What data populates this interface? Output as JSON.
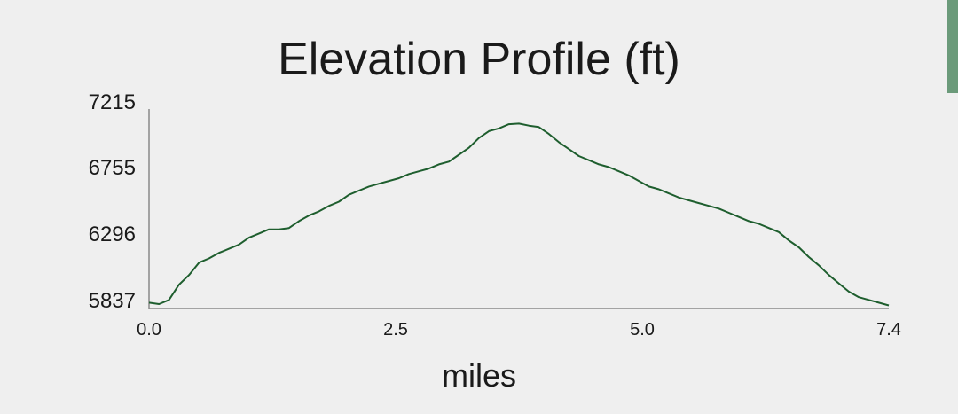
{
  "chart_data": {
    "type": "line",
    "title": "Elevation Profile (ft)",
    "xlabel": "miles",
    "ylabel": "",
    "xlim": [
      0.0,
      7.4
    ],
    "ylim": [
      5837,
      7215
    ],
    "x_ticks": [
      "0.0",
      "2.5",
      "5.0",
      "7.4"
    ],
    "y_ticks": [
      "7215",
      "6755",
      "6296",
      "5837"
    ],
    "grid": false,
    "series": [
      {
        "line_color": "#1e5e2e",
        "x": [
          0.0,
          0.1,
          0.2,
          0.3,
          0.4,
          0.5,
          0.6,
          0.7,
          0.8,
          0.9,
          1.0,
          1.1,
          1.2,
          1.3,
          1.4,
          1.5,
          1.6,
          1.7,
          1.8,
          1.9,
          2.0,
          2.1,
          2.2,
          2.3,
          2.4,
          2.5,
          2.6,
          2.7,
          2.8,
          2.9,
          3.0,
          3.1,
          3.2,
          3.3,
          3.4,
          3.5,
          3.6,
          3.7,
          3.8,
          3.9,
          4.0,
          4.1,
          4.2,
          4.3,
          4.4,
          4.5,
          4.6,
          4.7,
          4.8,
          4.9,
          5.0,
          5.1,
          5.2,
          5.3,
          5.4,
          5.5,
          5.6,
          5.7,
          5.8,
          5.9,
          6.0,
          6.1,
          6.2,
          6.3,
          6.4,
          6.5,
          6.6,
          6.7,
          6.8,
          6.9,
          7.0,
          7.1,
          7.2,
          7.3,
          7.4
        ],
        "y": [
          5860,
          5850,
          5880,
          5990,
          6060,
          6150,
          6180,
          6220,
          6250,
          6280,
          6330,
          6360,
          6390,
          6390,
          6400,
          6450,
          6490,
          6520,
          6560,
          6590,
          6640,
          6670,
          6700,
          6720,
          6740,
          6760,
          6790,
          6810,
          6830,
          6860,
          6880,
          6930,
          6980,
          7050,
          7100,
          7120,
          7150,
          7155,
          7140,
          7130,
          7080,
          7020,
          6970,
          6920,
          6890,
          6860,
          6840,
          6810,
          6780,
          6740,
          6700,
          6680,
          6650,
          6620,
          6600,
          6580,
          6560,
          6540,
          6510,
          6480,
          6450,
          6430,
          6400,
          6370,
          6310,
          6260,
          6190,
          6130,
          6060,
          6000,
          5940,
          5900,
          5880,
          5860,
          5840
        ]
      }
    ]
  }
}
